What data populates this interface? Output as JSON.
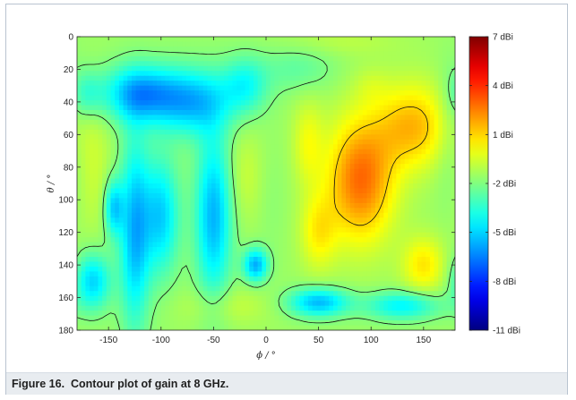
{
  "caption": {
    "number": "Figure 16.",
    "title": "Contour plot of gain at 8 GHz."
  },
  "chart_data": {
    "type": "heatmap",
    "title": "",
    "xlabel": "ϕ / °",
    "ylabel": "θ / °",
    "xlim": [
      -180,
      180
    ],
    "ylim": [
      0,
      180
    ],
    "y_inverted": true,
    "xticks": [
      -150,
      -100,
      -50,
      0,
      50,
      100,
      150
    ],
    "yticks": [
      0,
      20,
      40,
      60,
      80,
      100,
      120,
      140,
      160,
      180
    ],
    "colormap": "jet",
    "colorbar": {
      "range": [
        -11,
        7
      ],
      "ticks": [
        7,
        4,
        1,
        -2,
        -5,
        -8,
        -11
      ],
      "tick_labels": [
        "7 dBi",
        "4 dBi",
        "1 dBi",
        "-2 dBi",
        "-5 dBi",
        "-8 dBi",
        "-11 dBi"
      ]
    },
    "contour_levels": [
      -8,
      -2,
      1
    ],
    "base_level": -1.5,
    "features": [
      {
        "phi": 90,
        "theta": 88,
        "gain": 6.5,
        "sigma_phi": 22,
        "sigma_theta": 26
      },
      {
        "phi": 140,
        "theta": 55,
        "gain": 4.0,
        "sigma_phi": 25,
        "sigma_theta": 18
      },
      {
        "phi": 50,
        "theta": 120,
        "gain": 2.0,
        "sigma_phi": 12,
        "sigma_theta": 16
      },
      {
        "phi": 40,
        "theta": 65,
        "gain": 1.2,
        "sigma_phi": 10,
        "sigma_theta": 18
      },
      {
        "phi": 150,
        "theta": 140,
        "gain": 2.5,
        "sigma_phi": 14,
        "sigma_theta": 12
      },
      {
        "phi": 100,
        "theta": 30,
        "gain": -0.5,
        "sigma_phi": 12,
        "sigma_theta": 8
      },
      {
        "phi": 70,
        "theta": 3,
        "gain": -0.5,
        "sigma_phi": 40,
        "sigma_theta": 6
      },
      {
        "phi": -20,
        "theta": 85,
        "gain": 0.0,
        "sigma_phi": 12,
        "sigma_theta": 20
      },
      {
        "phi": -165,
        "theta": 80,
        "gain": 0.0,
        "sigma_phi": 12,
        "sigma_theta": 30
      },
      {
        "phi": -40,
        "theta": 165,
        "gain": 0.0,
        "sigma_phi": 30,
        "sigma_theta": 8
      },
      {
        "phi": -120,
        "theta": 35,
        "gain": -9.5,
        "sigma_phi": 25,
        "sigma_theta": 12
      },
      {
        "phi": -70,
        "theta": 40,
        "gain": -8.5,
        "sigma_phi": 25,
        "sigma_theta": 14
      },
      {
        "phi": -20,
        "theta": 30,
        "gain": -6.0,
        "sigma_phi": 15,
        "sigma_theta": 12
      },
      {
        "phi": -125,
        "theta": 120,
        "gain": -9.0,
        "sigma_phi": 10,
        "sigma_theta": 40
      },
      {
        "phi": -145,
        "theta": 105,
        "gain": -8.0,
        "sigma_phi": 6,
        "sigma_theta": 12
      },
      {
        "phi": -100,
        "theta": 110,
        "gain": -8.0,
        "sigma_phi": 12,
        "sigma_theta": 25
      },
      {
        "phi": -50,
        "theta": 110,
        "gain": -9.0,
        "sigma_phi": 12,
        "sigma_theta": 35
      },
      {
        "phi": -10,
        "theta": 140,
        "gain": -9.5,
        "sigma_phi": 8,
        "sigma_theta": 7
      },
      {
        "phi": -165,
        "theta": 150,
        "gain": -8.0,
        "sigma_phi": 12,
        "sigma_theta": 12
      },
      {
        "phi": 50,
        "theta": 163,
        "gain": -9.0,
        "sigma_phi": 20,
        "sigma_theta": 6
      },
      {
        "phi": 130,
        "theta": 165,
        "gain": -7.0,
        "sigma_phi": 25,
        "sigma_theta": 6
      },
      {
        "phi": -170,
        "theta": 35,
        "gain": -4.5,
        "sigma_phi": 10,
        "sigma_theta": 10
      },
      {
        "phi": 30,
        "theta": 20,
        "gain": -3.5,
        "sigma_phi": 25,
        "sigma_theta": 10
      },
      {
        "phi": 175,
        "theta": 60,
        "gain": -3.0,
        "sigma_phi": 10,
        "sigma_theta": 30
      },
      {
        "phi": 5,
        "theta": 100,
        "gain": -2.0,
        "sigma_phi": 10,
        "sigma_theta": 25
      }
    ]
  }
}
